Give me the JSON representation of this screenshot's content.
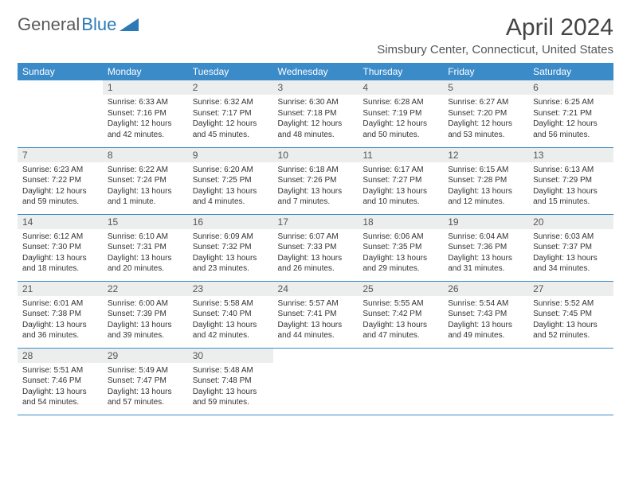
{
  "logo": {
    "text1": "General",
    "text2": "Blue"
  },
  "title": "April 2024",
  "location": "Simsbury Center, Connecticut, United States",
  "colors": {
    "header_bg": "#3b8bc9",
    "header_fg": "#ffffff",
    "daynum_bg": "#eceded",
    "row_border": "#3b8bc9",
    "logo_gray": "#5a5a5a",
    "logo_blue": "#2a7ab8"
  },
  "typography": {
    "title_fontsize": 30,
    "location_fontsize": 15,
    "dayhead_fontsize": 12,
    "daynum_fontsize": 12,
    "body_fontsize": 10
  },
  "day_headers": [
    "Sunday",
    "Monday",
    "Tuesday",
    "Wednesday",
    "Thursday",
    "Friday",
    "Saturday"
  ],
  "weeks": [
    [
      null,
      {
        "n": "1",
        "sr": "Sunrise: 6:33 AM",
        "ss": "Sunset: 7:16 PM",
        "d1": "Daylight: 12 hours",
        "d2": "and 42 minutes."
      },
      {
        "n": "2",
        "sr": "Sunrise: 6:32 AM",
        "ss": "Sunset: 7:17 PM",
        "d1": "Daylight: 12 hours",
        "d2": "and 45 minutes."
      },
      {
        "n": "3",
        "sr": "Sunrise: 6:30 AM",
        "ss": "Sunset: 7:18 PM",
        "d1": "Daylight: 12 hours",
        "d2": "and 48 minutes."
      },
      {
        "n": "4",
        "sr": "Sunrise: 6:28 AM",
        "ss": "Sunset: 7:19 PM",
        "d1": "Daylight: 12 hours",
        "d2": "and 50 minutes."
      },
      {
        "n": "5",
        "sr": "Sunrise: 6:27 AM",
        "ss": "Sunset: 7:20 PM",
        "d1": "Daylight: 12 hours",
        "d2": "and 53 minutes."
      },
      {
        "n": "6",
        "sr": "Sunrise: 6:25 AM",
        "ss": "Sunset: 7:21 PM",
        "d1": "Daylight: 12 hours",
        "d2": "and 56 minutes."
      }
    ],
    [
      {
        "n": "7",
        "sr": "Sunrise: 6:23 AM",
        "ss": "Sunset: 7:22 PM",
        "d1": "Daylight: 12 hours",
        "d2": "and 59 minutes."
      },
      {
        "n": "8",
        "sr": "Sunrise: 6:22 AM",
        "ss": "Sunset: 7:24 PM",
        "d1": "Daylight: 13 hours",
        "d2": "and 1 minute."
      },
      {
        "n": "9",
        "sr": "Sunrise: 6:20 AM",
        "ss": "Sunset: 7:25 PM",
        "d1": "Daylight: 13 hours",
        "d2": "and 4 minutes."
      },
      {
        "n": "10",
        "sr": "Sunrise: 6:18 AM",
        "ss": "Sunset: 7:26 PM",
        "d1": "Daylight: 13 hours",
        "d2": "and 7 minutes."
      },
      {
        "n": "11",
        "sr": "Sunrise: 6:17 AM",
        "ss": "Sunset: 7:27 PM",
        "d1": "Daylight: 13 hours",
        "d2": "and 10 minutes."
      },
      {
        "n": "12",
        "sr": "Sunrise: 6:15 AM",
        "ss": "Sunset: 7:28 PM",
        "d1": "Daylight: 13 hours",
        "d2": "and 12 minutes."
      },
      {
        "n": "13",
        "sr": "Sunrise: 6:13 AM",
        "ss": "Sunset: 7:29 PM",
        "d1": "Daylight: 13 hours",
        "d2": "and 15 minutes."
      }
    ],
    [
      {
        "n": "14",
        "sr": "Sunrise: 6:12 AM",
        "ss": "Sunset: 7:30 PM",
        "d1": "Daylight: 13 hours",
        "d2": "and 18 minutes."
      },
      {
        "n": "15",
        "sr": "Sunrise: 6:10 AM",
        "ss": "Sunset: 7:31 PM",
        "d1": "Daylight: 13 hours",
        "d2": "and 20 minutes."
      },
      {
        "n": "16",
        "sr": "Sunrise: 6:09 AM",
        "ss": "Sunset: 7:32 PM",
        "d1": "Daylight: 13 hours",
        "d2": "and 23 minutes."
      },
      {
        "n": "17",
        "sr": "Sunrise: 6:07 AM",
        "ss": "Sunset: 7:33 PM",
        "d1": "Daylight: 13 hours",
        "d2": "and 26 minutes."
      },
      {
        "n": "18",
        "sr": "Sunrise: 6:06 AM",
        "ss": "Sunset: 7:35 PM",
        "d1": "Daylight: 13 hours",
        "d2": "and 29 minutes."
      },
      {
        "n": "19",
        "sr": "Sunrise: 6:04 AM",
        "ss": "Sunset: 7:36 PM",
        "d1": "Daylight: 13 hours",
        "d2": "and 31 minutes."
      },
      {
        "n": "20",
        "sr": "Sunrise: 6:03 AM",
        "ss": "Sunset: 7:37 PM",
        "d1": "Daylight: 13 hours",
        "d2": "and 34 minutes."
      }
    ],
    [
      {
        "n": "21",
        "sr": "Sunrise: 6:01 AM",
        "ss": "Sunset: 7:38 PM",
        "d1": "Daylight: 13 hours",
        "d2": "and 36 minutes."
      },
      {
        "n": "22",
        "sr": "Sunrise: 6:00 AM",
        "ss": "Sunset: 7:39 PM",
        "d1": "Daylight: 13 hours",
        "d2": "and 39 minutes."
      },
      {
        "n": "23",
        "sr": "Sunrise: 5:58 AM",
        "ss": "Sunset: 7:40 PM",
        "d1": "Daylight: 13 hours",
        "d2": "and 42 minutes."
      },
      {
        "n": "24",
        "sr": "Sunrise: 5:57 AM",
        "ss": "Sunset: 7:41 PM",
        "d1": "Daylight: 13 hours",
        "d2": "and 44 minutes."
      },
      {
        "n": "25",
        "sr": "Sunrise: 5:55 AM",
        "ss": "Sunset: 7:42 PM",
        "d1": "Daylight: 13 hours",
        "d2": "and 47 minutes."
      },
      {
        "n": "26",
        "sr": "Sunrise: 5:54 AM",
        "ss": "Sunset: 7:43 PM",
        "d1": "Daylight: 13 hours",
        "d2": "and 49 minutes."
      },
      {
        "n": "27",
        "sr": "Sunrise: 5:52 AM",
        "ss": "Sunset: 7:45 PM",
        "d1": "Daylight: 13 hours",
        "d2": "and 52 minutes."
      }
    ],
    [
      {
        "n": "28",
        "sr": "Sunrise: 5:51 AM",
        "ss": "Sunset: 7:46 PM",
        "d1": "Daylight: 13 hours",
        "d2": "and 54 minutes."
      },
      {
        "n": "29",
        "sr": "Sunrise: 5:49 AM",
        "ss": "Sunset: 7:47 PM",
        "d1": "Daylight: 13 hours",
        "d2": "and 57 minutes."
      },
      {
        "n": "30",
        "sr": "Sunrise: 5:48 AM",
        "ss": "Sunset: 7:48 PM",
        "d1": "Daylight: 13 hours",
        "d2": "and 59 minutes."
      },
      null,
      null,
      null,
      null
    ]
  ]
}
